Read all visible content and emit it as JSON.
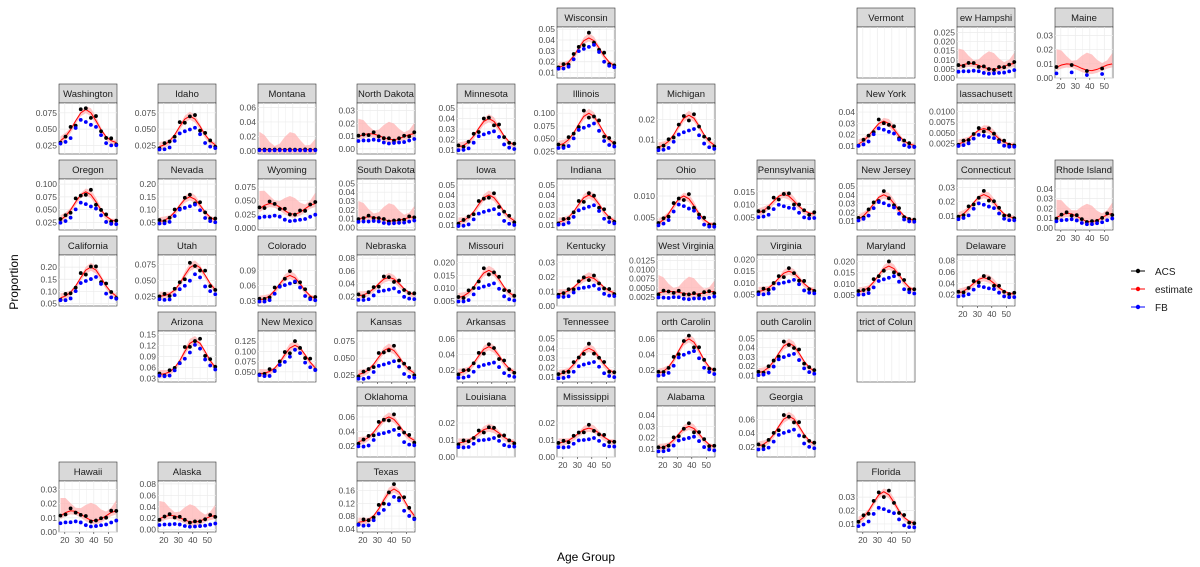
{
  "chart_data": {
    "type": "scatter",
    "layout": "geofacet small multiples (US states)",
    "xlabel": "Age Group",
    "ylabel": "Proportion",
    "x_ticks": [
      20,
      30,
      40,
      50
    ],
    "x_values": [
      17,
      20.5,
      24,
      27.5,
      31,
      34.5,
      38,
      41.5,
      45,
      48.5,
      52,
      55.5
    ],
    "x_range": [
      16,
      56
    ],
    "grid": true,
    "legend": {
      "position": "right",
      "items": [
        {
          "name": "ACS",
          "color": "#000000"
        },
        {
          "name": "estimate",
          "color": "#ff0000"
        },
        {
          "name": "FB",
          "color": "#0000ff"
        }
      ]
    },
    "colors": {
      "ACS": "#000000",
      "estimate": "#ff0000",
      "FB": "#0000ff",
      "band": "#ffb3b3",
      "strip": "#d9d9d9",
      "panel_grid": "#ebebeb"
    },
    "panels": [
      {
        "state": "Wisconsin",
        "ylim": [
          0.005,
          0.052
        ],
        "yticks": [
          "0.01",
          "0.02",
          "0.03",
          "0.04",
          "0.05"
        ],
        "shape": "peak",
        "peak": 0.042,
        "base": 0.014,
        "pos": 6,
        "fbscale": 0.85
      },
      {
        "state": "Vermont",
        "empty": true
      },
      {
        "state": "New Hampshire",
        "title": "ew Hampshi",
        "ylim": [
          0.0,
          0.028
        ],
        "yticks": [
          "0.000",
          "0.005",
          "0.010",
          "0.015",
          "0.020",
          "0.025"
        ],
        "shape": "flat",
        "peak": 0.008,
        "base": 0.004,
        "pos": 5,
        "fbscale": 0.5
      },
      {
        "state": "Maine",
        "ylim": [
          0.0,
          0.036
        ],
        "yticks": [
          "0.00",
          "0.01",
          "0.02",
          "0.03"
        ],
        "shape": "sparse",
        "peak": 0.01,
        "base": 0.004,
        "pos": 4,
        "fbscale": 0.4
      },
      {
        "state": "Washington",
        "ylim": [
          0.012,
          0.09
        ],
        "yticks": [
          "0.025",
          "0.050",
          "0.075"
        ],
        "shape": "peak",
        "peak": 0.08,
        "base": 0.028,
        "pos": 5,
        "fbscale": 0.8
      },
      {
        "state": "Idaho",
        "ylim": [
          0.012,
          0.09
        ],
        "yticks": [
          "0.025",
          "0.050",
          "0.075"
        ],
        "shape": "peak",
        "peak": 0.07,
        "base": 0.022,
        "pos": 6,
        "fbscale": 0.75
      },
      {
        "state": "Montana",
        "ylim": [
          -0.004,
          0.066
        ],
        "yticks": [
          "0.00",
          "0.02",
          "0.04",
          "0.06"
        ],
        "shape": "flat",
        "peak": 0.002,
        "base": 0.002,
        "pos": 5,
        "fbscale": 0.5
      },
      {
        "state": "North Dakota",
        "title": "North Dakota",
        "ylim": [
          -0.004,
          0.036
        ],
        "yticks": [
          "0.00",
          "0.01",
          "0.02",
          "0.03"
        ],
        "shape": "flat",
        "peak": 0.012,
        "base": 0.006,
        "pos": 4,
        "fbscale": 0.6
      },
      {
        "state": "Minnesota",
        "ylim": [
          0.006,
          0.055
        ],
        "yticks": [
          "0.01",
          "0.02",
          "0.03",
          "0.04",
          "0.05"
        ],
        "shape": "peak",
        "peak": 0.04,
        "base": 0.012,
        "pos": 6,
        "fbscale": 0.7
      },
      {
        "state": "Illinois",
        "ylim": [
          0.02,
          0.12
        ],
        "yticks": [
          "0.025",
          "0.050",
          "0.075",
          "0.100"
        ],
        "shape": "peak",
        "peak": 0.1,
        "base": 0.035,
        "pos": 6,
        "fbscale": 0.8
      },
      {
        "state": "Michigan",
        "ylim": [
          0.003,
          0.028
        ],
        "yticks": [
          "0.01",
          "0.02"
        ],
        "shape": "peak",
        "peak": 0.022,
        "base": 0.006,
        "pos": 6,
        "fbscale": 0.7
      },
      {
        "state": "New York",
        "ylim": [
          0.003,
          0.048
        ],
        "yticks": [
          "0.01",
          "0.02",
          "0.03",
          "0.04"
        ],
        "shape": "peak",
        "peak": 0.032,
        "base": 0.01,
        "pos": 5,
        "fbscale": 0.8
      },
      {
        "state": "Massachusetts",
        "title": "lassachusett",
        "ylim": [
          0.0,
          0.012
        ],
        "yticks": [
          "0.0025",
          "0.0050",
          "0.0075",
          "0.0100"
        ],
        "shape": "peak",
        "peak": 0.006,
        "base": 0.002,
        "pos": 5,
        "fbscale": 0.75
      },
      {
        "state": "Oregon",
        "ylim": [
          0.01,
          0.11
        ],
        "yticks": [
          "0.025",
          "0.050",
          "0.075",
          "0.100"
        ],
        "shape": "peak",
        "peak": 0.085,
        "base": 0.025,
        "pos": 5,
        "fbscale": 0.75
      },
      {
        "state": "Nevada",
        "ylim": [
          0.02,
          0.22
        ],
        "yticks": [
          "0.05",
          "0.10",
          "0.15",
          "0.20"
        ],
        "shape": "peak",
        "peak": 0.15,
        "base": 0.05,
        "pos": 6,
        "fbscale": 0.8
      },
      {
        "state": "Wyoming",
        "ylim": [
          -0.004,
          0.09
        ],
        "yticks": [
          "0.000",
          "0.025",
          "0.050",
          "0.075"
        ],
        "shape": "flat",
        "peak": 0.045,
        "base": 0.02,
        "pos": 5,
        "fbscale": 0.5
      },
      {
        "state": "South Dakota",
        "title": "South Dakota",
        "ylim": [
          -0.003,
          0.055
        ],
        "yticks": [
          "0.00",
          "0.01",
          "0.02",
          "0.03",
          "0.04",
          "0.05"
        ],
        "shape": "flat",
        "peak": 0.012,
        "base": 0.006,
        "pos": 4,
        "fbscale": 0.6
      },
      {
        "state": "Iowa",
        "ylim": [
          0.005,
          0.056
        ],
        "yticks": [
          "0.01",
          "0.02",
          "0.03",
          "0.04",
          "0.05"
        ],
        "shape": "peak",
        "peak": 0.04,
        "base": 0.012,
        "pos": 6,
        "fbscale": 0.65
      },
      {
        "state": "Indiana",
        "ylim": [
          0.005,
          0.056
        ],
        "yticks": [
          "0.01",
          "0.02",
          "0.03",
          "0.04",
          "0.05"
        ],
        "shape": "peak",
        "peak": 0.04,
        "base": 0.012,
        "pos": 6,
        "fbscale": 0.75
      },
      {
        "state": "Ohio",
        "ylim": [
          0.002,
          0.014
        ],
        "yticks": [
          "0.005",
          "0.010"
        ],
        "shape": "peak",
        "peak": 0.01,
        "base": 0.003,
        "pos": 5,
        "fbscale": 0.8
      },
      {
        "state": "Pennsylvania",
        "title": "Pennsylvania",
        "ylim": [
          0.0,
          0.02
        ],
        "yticks": [
          "0.005",
          "0.010",
          "0.015"
        ],
        "shape": "peak",
        "peak": 0.014,
        "base": 0.006,
        "pos": 5,
        "fbscale": 0.7
      },
      {
        "state": "New Jersey",
        "title": "New Jersey",
        "ylim": [
          0.0,
          0.058
        ],
        "yticks": [
          "0.01",
          "0.02",
          "0.03",
          "0.04",
          "0.05"
        ],
        "shape": "peak",
        "peak": 0.04,
        "base": 0.01,
        "pos": 5,
        "fbscale": 0.8
      },
      {
        "state": "Connecticut",
        "title": "Connecticut",
        "ylim": [
          0.0,
          0.036
        ],
        "yticks": [
          "0.01",
          "0.02",
          "0.03"
        ],
        "shape": "peak",
        "peak": 0.025,
        "base": 0.008,
        "pos": 5,
        "fbscale": 0.75
      },
      {
        "state": "Rhode Island",
        "title": "Rhode Island",
        "ylim": [
          -0.002,
          0.05
        ],
        "yticks": [
          "0.00",
          "0.01",
          "0.02",
          "0.03",
          "0.04"
        ],
        "shape": "flat",
        "peak": 0.015,
        "base": 0.004,
        "pos": 6,
        "fbscale": 0.6
      },
      {
        "state": "California",
        "ylim": [
          0.04,
          0.25
        ],
        "yticks": [
          "0.05",
          "0.10",
          "0.15",
          "0.20"
        ],
        "shape": "peak",
        "peak": 0.2,
        "base": 0.07,
        "pos": 6,
        "fbscale": 0.8
      },
      {
        "state": "Utah",
        "ylim": [
          0.01,
          0.09
        ],
        "yticks": [
          "0.025",
          "0.050",
          "0.075"
        ],
        "shape": "peak",
        "peak": 0.075,
        "base": 0.025,
        "pos": 7,
        "fbscale": 0.75
      },
      {
        "state": "Colorado",
        "ylim": [
          0.02,
          0.12
        ],
        "yticks": [
          "0.03",
          "0.06",
          "0.09"
        ],
        "shape": "peak",
        "peak": 0.08,
        "base": 0.03,
        "pos": 6,
        "fbscale": 0.85
      },
      {
        "state": "Nebraska",
        "ylim": [
          0.005,
          0.085
        ],
        "yticks": [
          "0.02",
          "0.04",
          "0.06",
          "0.08"
        ],
        "shape": "peak",
        "peak": 0.05,
        "base": 0.02,
        "pos": 6,
        "fbscale": 0.65
      },
      {
        "state": "Missouri",
        "ylim": [
          0.003,
          0.023
        ],
        "yticks": [
          "0.005",
          "0.010",
          "0.015",
          "0.020"
        ],
        "shape": "peak",
        "peak": 0.017,
        "base": 0.006,
        "pos": 6,
        "fbscale": 0.7
      },
      {
        "state": "Kentucky",
        "ylim": [
          0.0,
          0.035
        ],
        "yticks": [
          "0.00",
          "0.01",
          "0.02",
          "0.03"
        ],
        "shape": "peak",
        "peak": 0.02,
        "base": 0.008,
        "pos": 6,
        "fbscale": 0.7
      },
      {
        "state": "West Virginia",
        "title": "West Virginia",
        "ylim": [
          0.0,
          0.014
        ],
        "yticks": [
          "0.0025",
          "0.0050",
          "0.0075",
          "0.0100",
          "0.0125"
        ],
        "shape": "flat",
        "peak": 0.004,
        "base": 0.003,
        "pos": 5,
        "fbscale": 0.6
      },
      {
        "state": "Virginia",
        "ylim": [
          0.0,
          0.022
        ],
        "yticks": [
          "0.005",
          "0.010",
          "0.015",
          "0.020"
        ],
        "shape": "peak",
        "peak": 0.015,
        "base": 0.006,
        "pos": 6,
        "fbscale": 0.75
      },
      {
        "state": "Maryland",
        "ylim": [
          0.0,
          0.023
        ],
        "yticks": [
          "0.005",
          "0.010",
          "0.015",
          "0.020"
        ],
        "shape": "peak",
        "peak": 0.018,
        "base": 0.006,
        "pos": 6,
        "fbscale": 0.75
      },
      {
        "state": "Delaware",
        "ylim": [
          0.0,
          0.09
        ],
        "yticks": [
          "0.02",
          "0.04",
          "0.06",
          "0.08"
        ],
        "shape": "peak",
        "peak": 0.05,
        "base": 0.02,
        "pos": 5,
        "fbscale": 0.7
      },
      {
        "state": "Arizona",
        "ylim": [
          0.02,
          0.16
        ],
        "yticks": [
          "0.03",
          "0.06",
          "0.09",
          "0.12",
          "0.15"
        ],
        "shape": "peak",
        "peak": 0.135,
        "base": 0.04,
        "pos": 7,
        "fbscale": 0.85
      },
      {
        "state": "New Mexico",
        "ylim": [
          0.025,
          0.15
        ],
        "yticks": [
          "0.050",
          "0.075",
          "0.100",
          "0.125"
        ],
        "shape": "peak",
        "peak": 0.115,
        "base": 0.045,
        "pos": 7,
        "fbscale": 0.85
      },
      {
        "state": "Kansas",
        "ylim": [
          0.015,
          0.09
        ],
        "yticks": [
          "0.025",
          "0.050",
          "0.075"
        ],
        "shape": "peak",
        "peak": 0.065,
        "base": 0.025,
        "pos": 6,
        "fbscale": 0.7
      },
      {
        "state": "Arkansas",
        "ylim": [
          0.005,
          0.07
        ],
        "yticks": [
          "0.02",
          "0.04",
          "0.06"
        ],
        "shape": "peak",
        "peak": 0.05,
        "base": 0.015,
        "pos": 6,
        "fbscale": 0.6
      },
      {
        "state": "Tennessee",
        "ylim": [
          0.005,
          0.058
        ],
        "yticks": [
          "0.01",
          "0.02",
          "0.03",
          "0.04",
          "0.05"
        ],
        "shape": "peak",
        "peak": 0.04,
        "base": 0.012,
        "pos": 6,
        "fbscale": 0.65
      },
      {
        "state": "North Carolina",
        "title": "orth Carolin",
        "ylim": [
          0.005,
          0.07
        ],
        "yticks": [
          "0.02",
          "0.04",
          "0.06"
        ],
        "shape": "peak",
        "peak": 0.06,
        "base": 0.015,
        "pos": 6,
        "fbscale": 0.75
      },
      {
        "state": "South Carolina",
        "title": "outh Carolin",
        "ylim": [
          0.003,
          0.058
        ],
        "yticks": [
          "0.01",
          "0.02",
          "0.03",
          "0.04",
          "0.05"
        ],
        "shape": "peak",
        "peak": 0.045,
        "base": 0.012,
        "pos": 6,
        "fbscale": 0.75
      },
      {
        "state": "District of Columbia",
        "title": "trict of Colun",
        "empty": true
      },
      {
        "state": "Oklahoma",
        "ylim": [
          0.005,
          0.075
        ],
        "yticks": [
          "0.02",
          "0.04",
          "0.06"
        ],
        "shape": "peak",
        "peak": 0.06,
        "base": 0.025,
        "pos": 6,
        "fbscale": 0.7
      },
      {
        "state": "Louisiana",
        "ylim": [
          0.0,
          0.03
        ],
        "yticks": [
          "0.00",
          "0.01",
          "0.02"
        ],
        "shape": "peak",
        "peak": 0.017,
        "base": 0.008,
        "pos": 6,
        "fbscale": 0.65
      },
      {
        "state": "Mississippi",
        "ylim": [
          0.0,
          0.03
        ],
        "yticks": [
          "0.00",
          "0.01",
          "0.02"
        ],
        "shape": "peak",
        "peak": 0.017,
        "base": 0.008,
        "pos": 6,
        "fbscale": 0.65
      },
      {
        "state": "Alabama",
        "ylim": [
          0.003,
          0.048
        ],
        "yticks": [
          "0.01",
          "0.02",
          "0.03",
          "0.04"
        ],
        "shape": "peak",
        "peak": 0.03,
        "base": 0.01,
        "pos": 6,
        "fbscale": 0.7
      },
      {
        "state": "Georgia",
        "ylim": [
          0.005,
          0.08
        ],
        "yticks": [
          "0.02",
          "0.04",
          "0.06"
        ],
        "shape": "peak",
        "peak": 0.065,
        "base": 0.02,
        "pos": 6,
        "fbscale": 0.7
      },
      {
        "state": "Hawaii",
        "ylim": [
          0.0,
          0.036
        ],
        "yticks": [
          "0.00",
          "0.01",
          "0.02",
          "0.03"
        ],
        "shape": "flat",
        "peak": 0.015,
        "base": 0.006,
        "pos": 6,
        "fbscale": 0.5
      },
      {
        "state": "Alaska",
        "ylim": [
          -0.004,
          0.085
        ],
        "yticks": [
          "0.00",
          "0.02",
          "0.04",
          "0.06",
          "0.08"
        ],
        "shape": "flat",
        "peak": 0.025,
        "base": 0.01,
        "pos": 6,
        "fbscale": 0.4
      },
      {
        "state": "Texas",
        "ylim": [
          0.03,
          0.19
        ],
        "yticks": [
          "0.04",
          "0.08",
          "0.12",
          "0.16"
        ],
        "shape": "peak",
        "peak": 0.165,
        "base": 0.06,
        "pos": 7,
        "fbscale": 0.8
      },
      {
        "state": "Florida",
        "ylim": [
          0.004,
          0.042
        ],
        "yticks": [
          "0.01",
          "0.02",
          "0.03"
        ],
        "shape": "peak",
        "peak": 0.034,
        "base": 0.01,
        "pos": 5,
        "fbscale": 0.65
      }
    ]
  }
}
